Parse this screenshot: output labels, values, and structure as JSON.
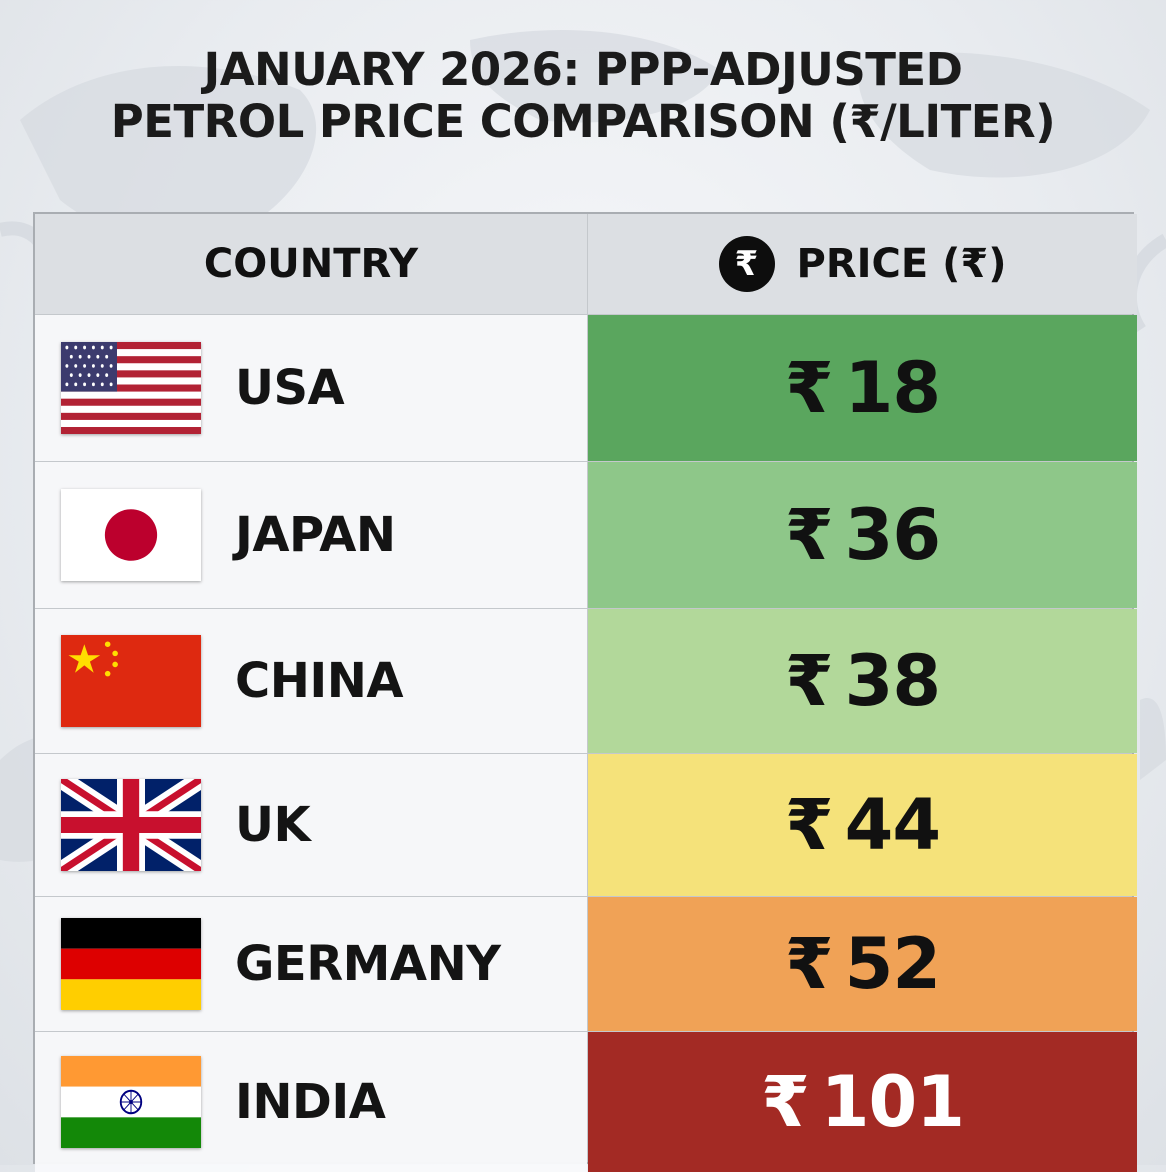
{
  "title_line1": "JANUARY 2026: PPP-ADJUSTED",
  "title_line2": "PETROL PRICE COMPARISON (₹/LITER)",
  "chart_data": {
    "type": "table",
    "title": "JANUARY 2026: PPP-ADJUSTED PETROL PRICE COMPARISON (₹/LITER)",
    "columns": [
      "COUNTRY",
      "PRICE (₹)"
    ],
    "currency_symbol": "₹",
    "rows": [
      {
        "country": "USA",
        "value": 18,
        "flag": "usa-flag-icon",
        "color": "#5aa65e"
      },
      {
        "country": "JAPAN",
        "value": 36,
        "flag": "japan-flag-icon",
        "color": "#8ec789"
      },
      {
        "country": "CHINA",
        "value": 38,
        "flag": "china-flag-icon",
        "color": "#b2d89a"
      },
      {
        "country": "UK",
        "value": 44,
        "flag": "uk-flag-icon",
        "color": "#f5e27a"
      },
      {
        "country": "GERMANY",
        "value": 52,
        "flag": "germany-flag-icon",
        "color": "#f0a256"
      },
      {
        "country": "INDIA",
        "value": 101,
        "flag": "india-flag-icon",
        "color": "#a32a24"
      }
    ]
  }
}
